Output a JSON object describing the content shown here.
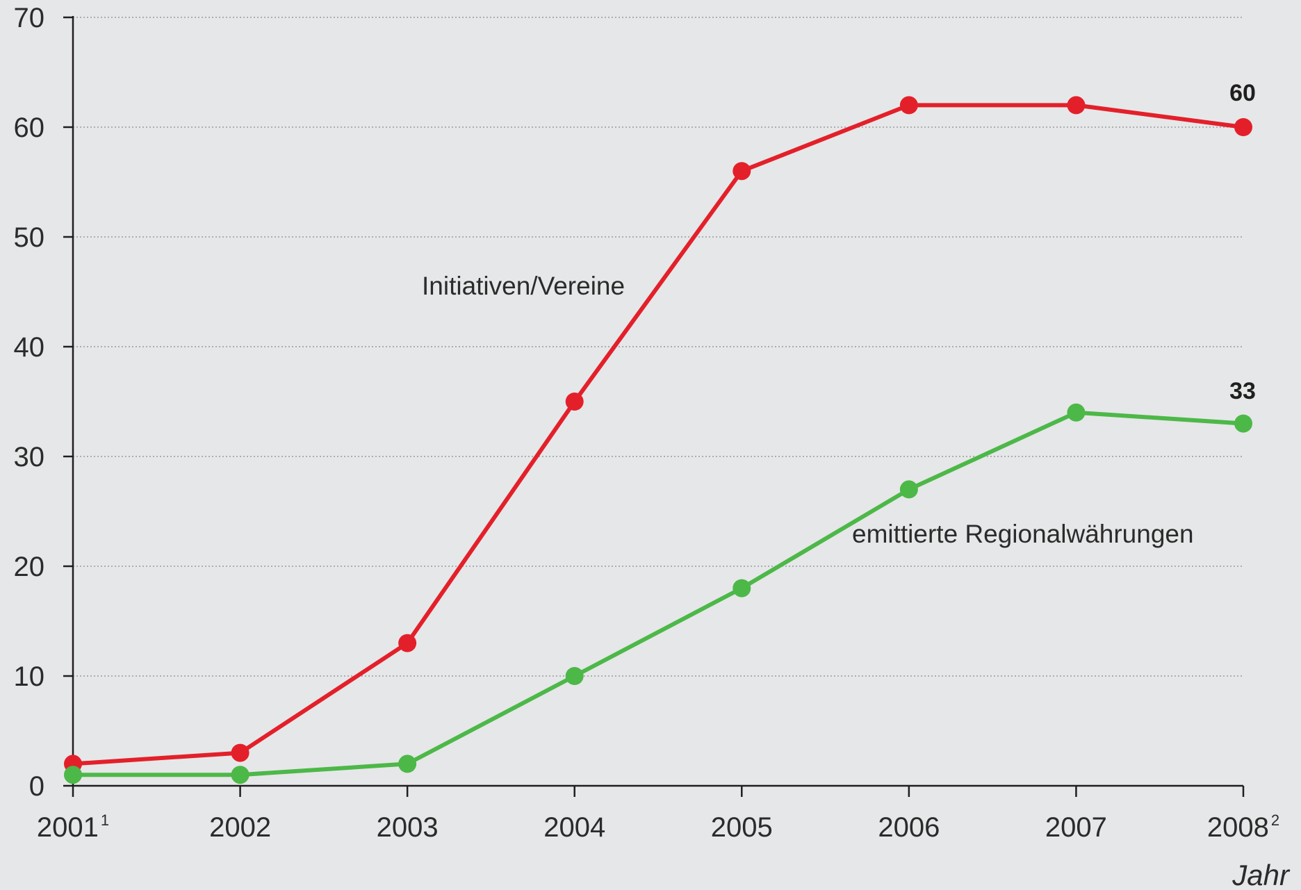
{
  "chart_data": {
    "type": "line",
    "title": "",
    "xlabel": "Jahr",
    "ylabel": "",
    "ylim": [
      0,
      70
    ],
    "yticks": [
      0,
      10,
      20,
      30,
      40,
      50,
      60,
      70
    ],
    "grid": true,
    "categories": [
      {
        "label": "2001",
        "sup": "1"
      },
      {
        "label": "2002",
        "sup": ""
      },
      {
        "label": "2003",
        "sup": ""
      },
      {
        "label": "2004",
        "sup": ""
      },
      {
        "label": "2005",
        "sup": ""
      },
      {
        "label": "2006",
        "sup": ""
      },
      {
        "label": "2007",
        "sup": ""
      },
      {
        "label": "2008",
        "sup": "2"
      }
    ],
    "series": [
      {
        "name": "Initiativen/Vereine",
        "color": "#e3202a",
        "values": [
          2,
          3,
          13,
          35,
          56,
          62,
          62,
          60
        ],
        "end_label": "60"
      },
      {
        "name": "emittierte Regionalwährungen",
        "color": "#4cb848",
        "values": [
          1,
          1,
          2,
          10,
          18,
          27,
          34,
          33
        ],
        "end_label": "33"
      }
    ]
  }
}
